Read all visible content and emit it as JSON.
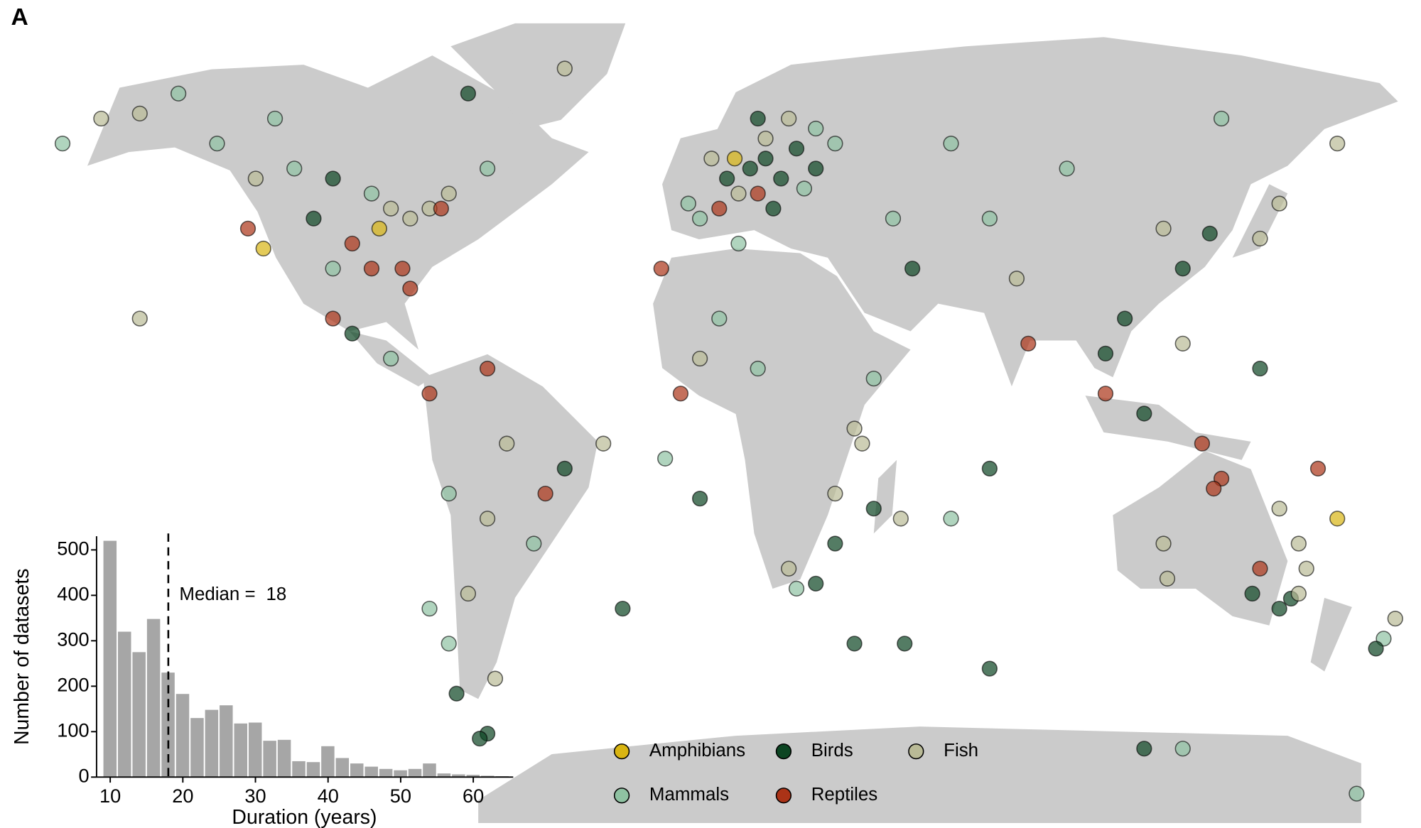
{
  "panel_label": "A",
  "chart_data": [
    {
      "type": "map",
      "series": [
        {
          "name": "Amphibians",
          "color": "#d9b512"
        },
        {
          "name": "Birds",
          "color": "#0c4522"
        },
        {
          "name": "Fish",
          "color": "#b9ba96"
        },
        {
          "name": "Mammals",
          "color": "#8fc2a2"
        },
        {
          "name": "Reptiles",
          "color": "#ab3317"
        }
      ],
      "points": [
        [
          2,
          48,
          "Birds"
        ],
        [
          8,
          50,
          "Birds"
        ],
        [
          12,
          52,
          "Birds"
        ],
        [
          16,
          48,
          "Birds"
        ],
        [
          20,
          54,
          "Birds"
        ],
        [
          25,
          58,
          "Mammals"
        ],
        [
          5,
          45,
          "Fish"
        ],
        [
          -2,
          52,
          "Fish"
        ],
        [
          10,
          45,
          "Reptiles"
        ],
        [
          0,
          42,
          "Reptiles"
        ],
        [
          14,
          42,
          "Birds"
        ],
        [
          22,
          46,
          "Mammals"
        ],
        [
          30,
          55,
          "Mammals"
        ],
        [
          -5,
          40,
          "Mammals"
        ],
        [
          18,
          60,
          "Fish"
        ],
        [
          10,
          60,
          "Birds"
        ],
        [
          4,
          52,
          "Amphibians"
        ],
        [
          25,
          50,
          "Birds"
        ],
        [
          12,
          56,
          "Fish"
        ],
        [
          -8,
          43,
          "Mammals"
        ],
        [
          -75,
          42,
          "Fish"
        ],
        [
          -80,
          40,
          "Fish"
        ],
        [
          -85,
          42,
          "Fish"
        ],
        [
          -90,
          45,
          "Mammals"
        ],
        [
          -100,
          48,
          "Birds"
        ],
        [
          -110,
          50,
          "Mammals"
        ],
        [
          -120,
          48,
          "Fish"
        ],
        [
          -122,
          38,
          "Reptiles"
        ],
        [
          -118,
          34,
          "Amphibians"
        ],
        [
          -95,
          35,
          "Reptiles"
        ],
        [
          -88,
          38,
          "Amphibians"
        ],
        [
          -82,
          30,
          "Reptiles"
        ],
        [
          -80,
          26,
          "Reptiles"
        ],
        [
          -100,
          30,
          "Mammals"
        ],
        [
          -105,
          40,
          "Birds"
        ],
        [
          -115,
          60,
          "Mammals"
        ],
        [
          -130,
          55,
          "Mammals"
        ],
        [
          -150,
          61,
          "Fish"
        ],
        [
          -160,
          60,
          "Fish"
        ],
        [
          -140,
          65,
          "Mammals"
        ],
        [
          -70,
          45,
          "Fish"
        ],
        [
          -72,
          42,
          "Reptiles"
        ],
        [
          -90,
          30,
          "Reptiles"
        ],
        [
          -100,
          20,
          "Reptiles"
        ],
        [
          -95,
          17,
          "Birds"
        ],
        [
          -85,
          12,
          "Mammals"
        ],
        [
          -150,
          20,
          "Fish"
        ],
        [
          -170,
          55,
          "Mammals"
        ],
        [
          -60,
          50,
          "Mammals"
        ],
        [
          -65,
          65,
          "Birds"
        ],
        [
          -40,
          70,
          "Fish"
        ],
        [
          -75,
          5,
          "Reptiles"
        ],
        [
          -60,
          10,
          "Reptiles"
        ],
        [
          -55,
          -5,
          "Fish"
        ],
        [
          -45,
          -15,
          "Reptiles"
        ],
        [
          -48,
          -25,
          "Mammals"
        ],
        [
          -60,
          -20,
          "Fish"
        ],
        [
          -70,
          -15,
          "Mammals"
        ],
        [
          -65,
          -35,
          "Fish"
        ],
        [
          -70,
          -45,
          "Mammals"
        ],
        [
          -68,
          -55,
          "Birds"
        ],
        [
          -75,
          -38,
          "Mammals"
        ],
        [
          -58,
          -52,
          "Fish"
        ],
        [
          -40,
          -10,
          "Birds"
        ],
        [
          35,
          -2,
          "Fish"
        ],
        [
          37,
          -5,
          "Fish"
        ],
        [
          30,
          -25,
          "Birds"
        ],
        [
          25,
          -33,
          "Birds"
        ],
        [
          20,
          -34,
          "Mammals"
        ],
        [
          18,
          -30,
          "Fish"
        ],
        [
          10,
          10,
          "Mammals"
        ],
        [
          -5,
          12,
          "Fish"
        ],
        [
          0,
          20,
          "Mammals"
        ],
        [
          5,
          35,
          "Mammals"
        ],
        [
          -15,
          30,
          "Reptiles"
        ],
        [
          40,
          8,
          "Mammals"
        ],
        [
          30,
          -15,
          "Fish"
        ],
        [
          -10,
          5,
          "Reptiles"
        ],
        [
          47,
          -20,
          "Fish"
        ],
        [
          77,
          28,
          "Fish"
        ],
        [
          80,
          15,
          "Reptiles"
        ],
        [
          100,
          13,
          "Birds"
        ],
        [
          105,
          20,
          "Birds"
        ],
        [
          120,
          30,
          "Birds"
        ],
        [
          115,
          38,
          "Fish"
        ],
        [
          127,
          37,
          "Birds"
        ],
        [
          140,
          36,
          "Fish"
        ],
        [
          145,
          43,
          "Fish"
        ],
        [
          100,
          5,
          "Reptiles"
        ],
        [
          110,
          1,
          "Birds"
        ],
        [
          120,
          15,
          "Fish"
        ],
        [
          60,
          55,
          "Mammals"
        ],
        [
          90,
          50,
          "Mammals"
        ],
        [
          130,
          60,
          "Mammals"
        ],
        [
          160,
          55,
          "Fish"
        ],
        [
          140,
          10,
          "Birds"
        ],
        [
          50,
          30,
          "Birds"
        ],
        [
          45,
          40,
          "Mammals"
        ],
        [
          70,
          40,
          "Mammals"
        ],
        [
          130,
          -12,
          "Reptiles"
        ],
        [
          128,
          -14,
          "Reptiles"
        ],
        [
          145,
          -18,
          "Fish"
        ],
        [
          150,
          -25,
          "Fish"
        ],
        [
          152,
          -30,
          "Fish"
        ],
        [
          148,
          -36,
          "Birds"
        ],
        [
          145,
          -38,
          "Birds"
        ],
        [
          138,
          -35,
          "Birds"
        ],
        [
          116,
          -32,
          "Fish"
        ],
        [
          115,
          -25,
          "Fish"
        ],
        [
          150,
          -35,
          "Fish"
        ],
        [
          175,
          -40,
          "Fish"
        ],
        [
          172,
          -44,
          "Mammals"
        ],
        [
          170,
          -46,
          "Birds"
        ],
        [
          140,
          -30,
          "Reptiles"
        ],
        [
          160,
          -20,
          "Amphibians"
        ],
        [
          125,
          -5,
          "Reptiles"
        ],
        [
          155,
          -10,
          "Reptiles"
        ],
        [
          -30,
          -5,
          "Fish"
        ],
        [
          -14,
          -8,
          "Mammals"
        ],
        [
          -5,
          -16,
          "Birds"
        ],
        [
          -25,
          -38,
          "Birds"
        ],
        [
          70,
          -50,
          "Birds"
        ],
        [
          40,
          -18,
          "Birds"
        ],
        [
          60,
          -20,
          "Mammals"
        ],
        [
          70,
          -10,
          "Birds"
        ],
        [
          35,
          -45,
          "Birds"
        ],
        [
          48,
          -45,
          "Birds"
        ],
        [
          -60,
          -63,
          "Birds"
        ],
        [
          -62,
          -64,
          "Birds"
        ],
        [
          110,
          -66,
          "Birds"
        ],
        [
          120,
          -66,
          "Mammals"
        ],
        [
          165,
          -75,
          "Mammals"
        ]
      ]
    },
    {
      "type": "histogram",
      "bins": [
        9,
        11,
        13,
        15,
        17,
        19,
        21,
        23,
        25,
        27,
        29,
        31,
        33,
        35,
        37,
        39,
        41,
        43,
        45,
        47,
        49,
        51,
        53,
        55,
        57,
        59,
        61,
        63,
        65
      ],
      "values": [
        520,
        320,
        275,
        348,
        230,
        183,
        130,
        148,
        158,
        118,
        120,
        80,
        82,
        35,
        33,
        68,
        42,
        30,
        23,
        18,
        15,
        18,
        30,
        8,
        6,
        5,
        3,
        2
      ],
      "color": "#a6a6a6",
      "xlim": [
        8.5,
        65.5
      ],
      "ylim": [
        0,
        530
      ],
      "xticks": [
        10,
        20,
        30,
        40,
        50,
        60
      ],
      "yticks": [
        0,
        100,
        200,
        300,
        400,
        500
      ],
      "xlabel": "Duration (years)",
      "ylabel": "Number of datasets",
      "median_label": "Median = ",
      "median": 18
    }
  ]
}
